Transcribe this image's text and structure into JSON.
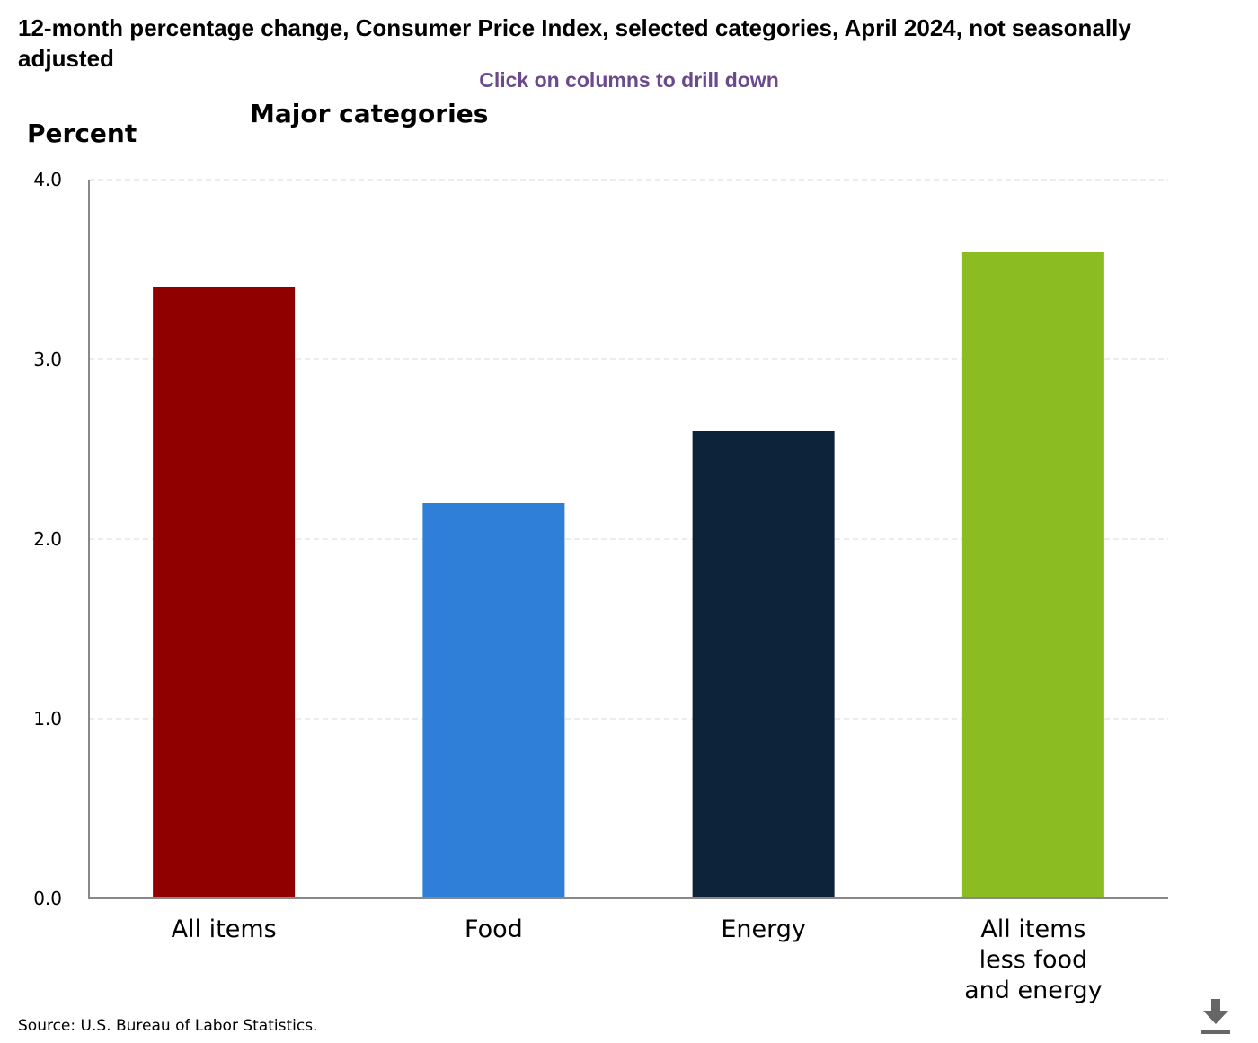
{
  "header": {
    "title": "12-month percentage change, Consumer Price Index, selected categories, April 2024, not seasonally adjusted",
    "drill_hint": "Click on columns to drill down"
  },
  "footer": {
    "source": "Source: U.S. Bureau of Labor Statistics.",
    "download_icon": "download-icon"
  },
  "chart_data": {
    "type": "bar",
    "title": "Major categories",
    "ylabel": "Percent",
    "xlabel": "",
    "ylim": [
      0,
      4
    ],
    "yticks": [
      "0.0",
      "1.0",
      "2.0",
      "3.0",
      "4.0"
    ],
    "grid": true,
    "categories": [
      [
        "All items"
      ],
      [
        "Food"
      ],
      [
        "Energy"
      ],
      [
        "All items",
        "less food",
        "and energy"
      ]
    ],
    "values": [
      3.4,
      2.2,
      2.6,
      3.6
    ],
    "colors": [
      "#900000",
      "#2f7ed8",
      "#0d233a",
      "#8bbc21"
    ]
  }
}
